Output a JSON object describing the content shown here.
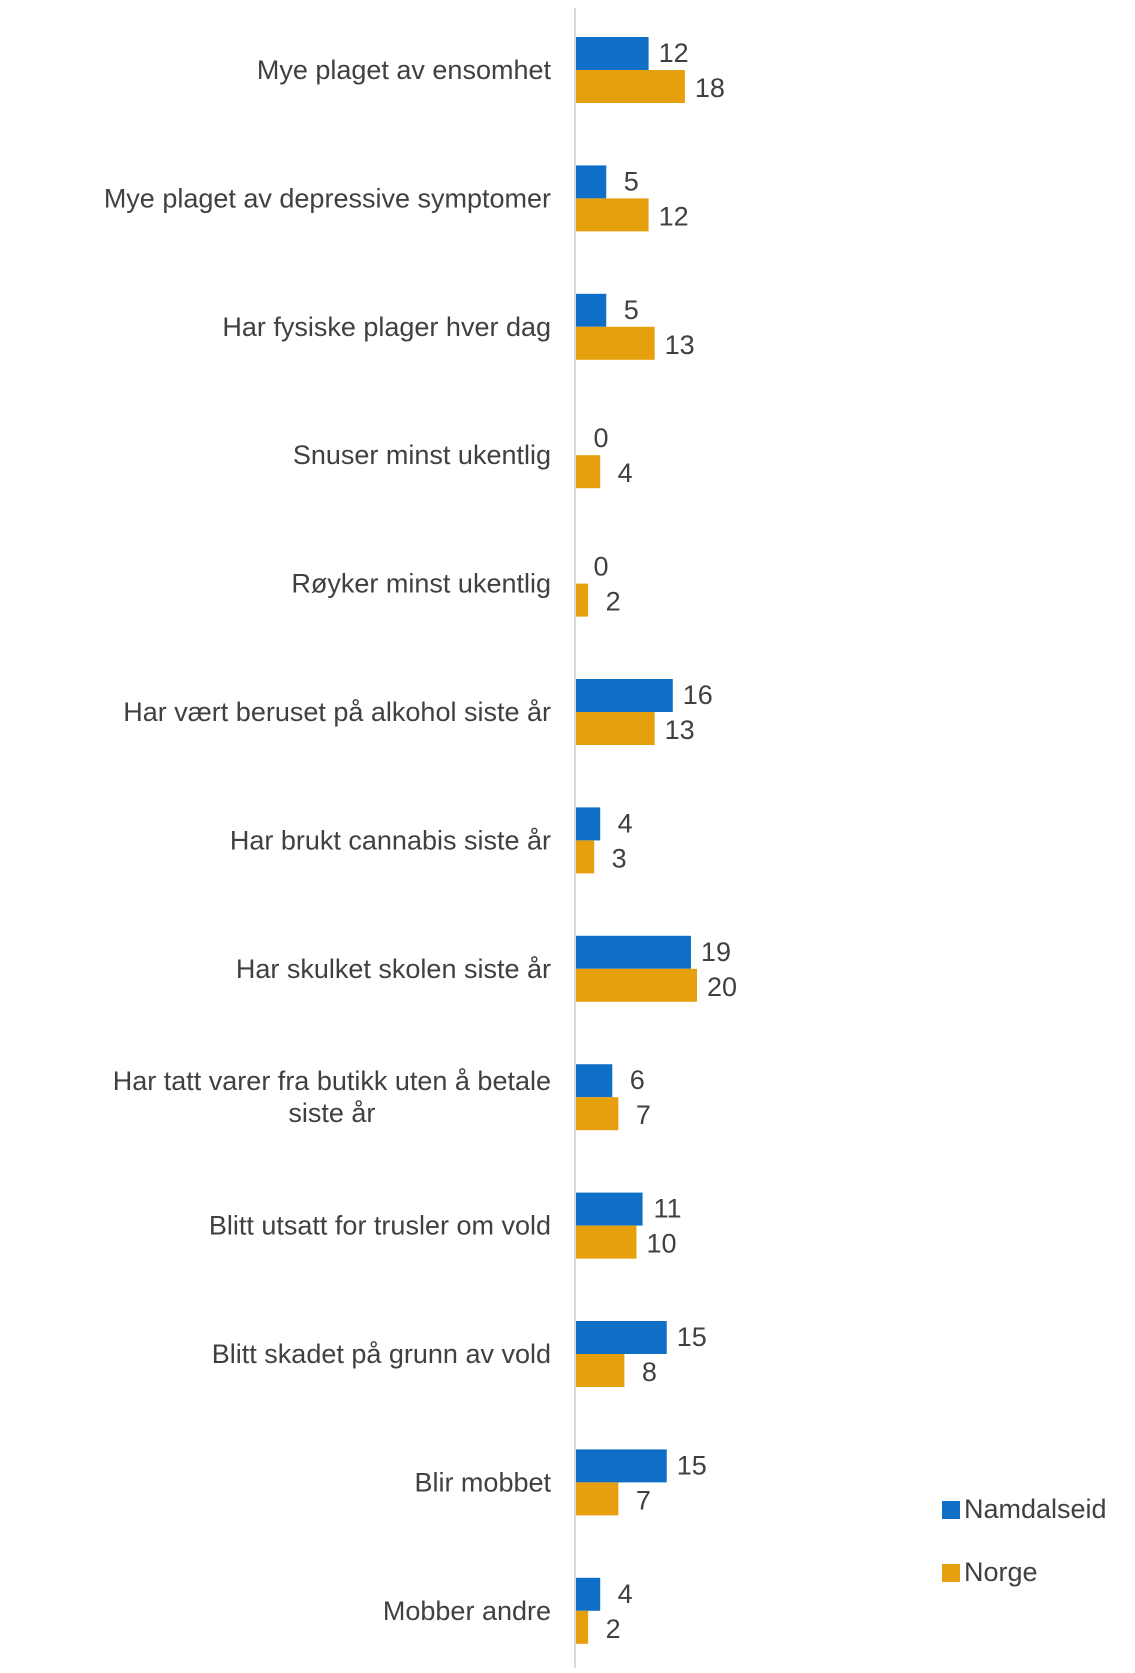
{
  "chart_data": {
    "type": "bar",
    "orientation": "horizontal",
    "categories": [
      "Mye plaget av ensomhet",
      "Mye plaget av depressive symptomer",
      "Har fysiske plager hver dag",
      "Snuser minst ukentlig",
      "Røyker minst ukentlig",
      "Har vært beruset på alkohol siste år",
      "Har brukt cannabis siste år",
      "Har skulket skolen siste år",
      "Har tatt varer fra butikk uten å betale siste år",
      "Blitt utsatt for trusler om vold",
      "Blitt skadet på grunn av vold",
      "Blir mobbet",
      "Mobber andre"
    ],
    "series": [
      {
        "name": "Namdalseid",
        "color": "#0f6fc6",
        "values": [
          12,
          5,
          5,
          0,
          0,
          16,
          4,
          19,
          6,
          11,
          15,
          15,
          4
        ]
      },
      {
        "name": "Norge",
        "color": "#e6a00e",
        "values": [
          18,
          12,
          13,
          4,
          2,
          13,
          3,
          20,
          7,
          10,
          8,
          7,
          2
        ]
      }
    ],
    "xlim": [
      0,
      100
    ],
    "grid": false,
    "legend_position": "bottom-right",
    "data_labels": true
  }
}
